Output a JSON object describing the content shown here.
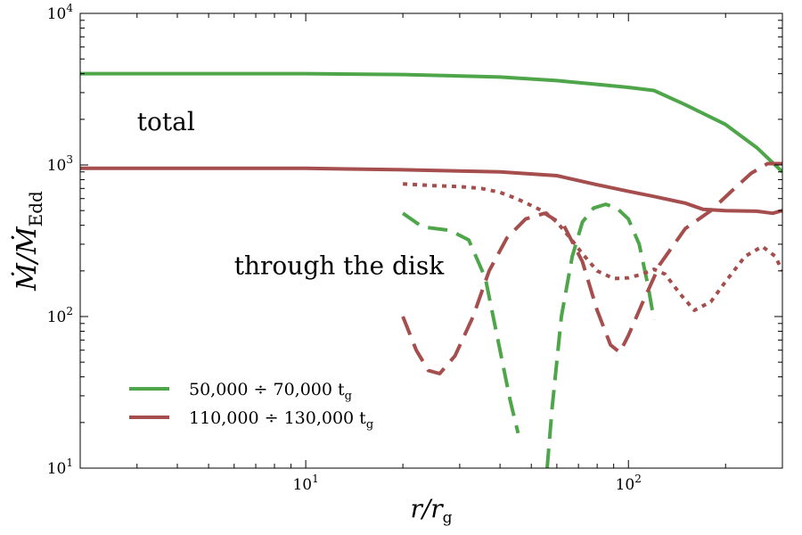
{
  "chart_data": {
    "type": "line",
    "xscale": "log",
    "yscale": "log",
    "xlim": [
      2.0,
      300
    ],
    "ylim": [
      10,
      10000
    ],
    "xlabel": "r/r_g",
    "ylabel": "Ṁ/Ṁ_Edd",
    "x_ticks": [
      {
        "base": "10",
        "exp": "1"
      },
      {
        "base": "10",
        "exp": "2"
      }
    ],
    "y_ticks": [
      {
        "base": "10",
        "exp": "1"
      },
      {
        "base": "10",
        "exp": "2"
      },
      {
        "base": "10",
        "exp": "3"
      },
      {
        "base": "10",
        "exp": "4"
      }
    ],
    "annotations": [
      {
        "text": "total",
        "x": 3.0,
        "y": 1700
      },
      {
        "text": "through the disk",
        "x": 6.0,
        "y": 190
      }
    ],
    "legend": {
      "placement": "lower-left",
      "entries": [
        {
          "label": "50,000 ÷ 70,000 t",
          "sub": "g",
          "color": "#4fa64a"
        },
        {
          "label": "110,000 ÷ 130,000 t",
          "sub": "g",
          "color": "#a54e4d"
        }
      ]
    },
    "series": [
      {
        "legend_index": 0,
        "style": "solid",
        "color": "#4fa64a",
        "x": [
          2.0,
          5,
          10,
          20,
          40,
          60,
          80,
          100,
          120,
          150,
          200,
          250,
          300
        ],
        "y": [
          4000,
          4000,
          4000,
          3950,
          3800,
          3600,
          3400,
          3250,
          3100,
          2500,
          1850,
          1300,
          900
        ]
      },
      {
        "legend_index": 1,
        "style": "solid",
        "color": "#a54e4d",
        "x": [
          2.0,
          5,
          10,
          20,
          40,
          60,
          80,
          100,
          120,
          150,
          170,
          200,
          250,
          280,
          300
        ],
        "y": [
          950,
          950,
          950,
          930,
          900,
          850,
          740,
          670,
          620,
          560,
          510,
          500,
          495,
          480,
          500
        ]
      },
      {
        "legend_index": 0,
        "style": "dashed",
        "color": "#4fa64a",
        "x": [
          20,
          23,
          28,
          32,
          36,
          40,
          43,
          45.5
        ],
        "y": [
          480,
          390,
          370,
          320,
          180,
          60,
          28,
          17
        ]
      },
      {
        "legend_index": 0,
        "style": "dashed",
        "color": "#4fa64a",
        "x": [
          56,
          58,
          62,
          67,
          72,
          78,
          85,
          92,
          100,
          108,
          115,
          120
        ],
        "y": [
          10,
          25,
          100,
          250,
          420,
          520,
          550,
          520,
          440,
          300,
          160,
          95
        ]
      },
      {
        "legend_index": 1,
        "style": "dashed",
        "color": "#a54e4d",
        "x": [
          20,
          22,
          24,
          26,
          29,
          33,
          37,
          42,
          48,
          55,
          63,
          72,
          80,
          88,
          94,
          100,
          110,
          125,
          150,
          180,
          210,
          240,
          270,
          300
        ],
        "y": [
          100,
          60,
          44,
          42,
          55,
          100,
          200,
          330,
          440,
          480,
          400,
          230,
          110,
          65,
          58,
          75,
          120,
          220,
          380,
          500,
          680,
          880,
          1020,
          1020
        ]
      },
      {
        "legend_index": 1,
        "style": "dotted",
        "color": "#a54e4d",
        "x": [
          20,
          25,
          30,
          35,
          40,
          45,
          50,
          55,
          60,
          66,
          72,
          80,
          90,
          100,
          110,
          120,
          130,
          145,
          160,
          180,
          200,
          230,
          260,
          285,
          300
        ],
        "y": [
          750,
          730,
          720,
          700,
          660,
          600,
          540,
          490,
          420,
          330,
          260,
          200,
          178,
          180,
          190,
          205,
          190,
          140,
          110,
          125,
          170,
          250,
          290,
          250,
          200
        ]
      }
    ]
  }
}
